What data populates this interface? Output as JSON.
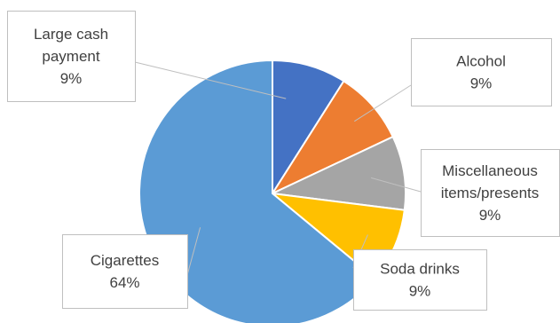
{
  "chart_data": {
    "type": "pie",
    "title": "",
    "slices": [
      {
        "label": [
          "Large cash",
          "payment"
        ],
        "value": 9,
        "percent_label": "9%",
        "color": "#4472C4"
      },
      {
        "label": [
          "Alcohol"
        ],
        "value": 9,
        "percent_label": "9%",
        "color": "#ED7D31"
      },
      {
        "label": [
          "Miscellaneous",
          "items/presents"
        ],
        "value": 9,
        "percent_label": "9%",
        "color": "#A5A5A5"
      },
      {
        "label": [
          "Soda drinks"
        ],
        "value": 9,
        "percent_label": "9%",
        "color": "#FFC000"
      },
      {
        "label": [
          "Cigarettes"
        ],
        "value": 64,
        "percent_label": "64%",
        "color": "#5B9BD5"
      }
    ],
    "start_angle_deg": 0,
    "direction": "clockwise",
    "legend": "none",
    "data_labels": "callouts"
  }
}
